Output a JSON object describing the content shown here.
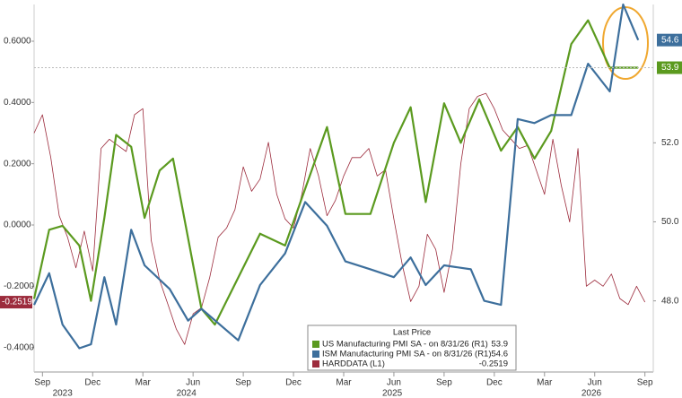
{
  "chart_data": {
    "type": "line",
    "xlim": [
      -0.5,
      36.5
    ],
    "xticks": [
      {
        "value": 0,
        "label": "Sep"
      },
      {
        "value": 3,
        "label": "Dec"
      },
      {
        "value": 6,
        "label": "Mar"
      },
      {
        "value": 9,
        "label": "Jun"
      },
      {
        "value": 12,
        "label": "Sep"
      },
      {
        "value": 15,
        "label": "Dec"
      },
      {
        "value": 18,
        "label": "Mar"
      },
      {
        "value": 21,
        "label": "Jun"
      },
      {
        "value": 24,
        "label": "Sep"
      },
      {
        "value": 27,
        "label": "Dec"
      },
      {
        "value": 30,
        "label": "Mar"
      },
      {
        "value": 33,
        "label": "Jun"
      },
      {
        "value": 36,
        "label": "Sep"
      }
    ],
    "year_labels": [
      {
        "value": 1.2,
        "label": "2023"
      },
      {
        "value": 8.6,
        "label": "2024"
      },
      {
        "value": 20.9,
        "label": "2025"
      },
      {
        "value": 32.8,
        "label": "2026"
      }
    ],
    "ylim": [
      -0.48,
      0.72
    ],
    "yticks": [
      {
        "value": -0.4,
        "label": "-0.4000"
      },
      {
        "value": -0.2,
        "label": "-0.2000"
      },
      {
        "value": 0,
        "label": "0.0000"
      },
      {
        "value": 0.2,
        "label": "0.2000"
      },
      {
        "value": 0.4,
        "label": "0.4000"
      },
      {
        "value": 0.6,
        "label": "0.6000"
      }
    ],
    "y2lim": [
      46.2,
      55.5
    ],
    "y2ticks": [
      {
        "value": 48,
        "label": "48.0"
      },
      {
        "value": 50,
        "label": "50.0"
      },
      {
        "value": 52,
        "label": "52.0"
      }
    ],
    "legend_title": "Last Price",
    "series": [
      {
        "name": "US Manufacturing PMI SA - on 8/31/26 (R1)",
        "color": "#5b9a1f",
        "axis": "y2",
        "x": [
          -0.5,
          0.4,
          1.2,
          2.2,
          2.9,
          3.7,
          4.4,
          5.3,
          6.1,
          7.0,
          7.8,
          9.5,
          10.3,
          13.0,
          14.5,
          17.0,
          18.1,
          19.6,
          21.0,
          22.0,
          22.9,
          24.0,
          25.0,
          26.1,
          27.4,
          28.4,
          29.4,
          30.4,
          31.6,
          32.6,
          33.9,
          35.6
        ],
        "values": [
          48.05,
          49.8,
          49.9,
          49.4,
          48.0,
          50.1,
          52.2,
          51.9,
          50.1,
          51.3,
          51.6,
          47.8,
          47.4,
          49.7,
          49.4,
          52.4,
          50.2,
          50.2,
          52.0,
          52.9,
          50.5,
          53.0,
          52.0,
          53.1,
          51.8,
          52.4,
          51.6,
          52.3,
          54.5,
          55.1,
          53.9,
          53.9
        ]
      },
      {
        "name": "ISM Manufacturing PMI SA - on 8/31/26 (R1)",
        "color": "#3d6f9c",
        "axis": "y2",
        "x": [
          -0.5,
          0.4,
          1.2,
          2.2,
          2.9,
          3.7,
          4.4,
          5.3,
          6.1,
          7.6,
          8.7,
          9.5,
          11.7,
          13.0,
          14.5,
          15.7,
          17.0,
          18.1,
          19.6,
          21.0,
          22.0,
          22.9,
          24.0,
          25.6,
          26.4,
          27.4,
          28.4,
          29.4,
          30.4,
          31.6,
          32.6,
          33.9,
          34.7,
          35.6
        ],
        "values": [
          47.9,
          48.7,
          47.4,
          46.8,
          46.9,
          48.6,
          47.4,
          49.8,
          48.9,
          48.3,
          47.5,
          47.8,
          47.0,
          48.4,
          49.2,
          50.5,
          49.9,
          49.0,
          48.8,
          48.6,
          49.1,
          48.4,
          48.9,
          48.8,
          48.0,
          47.9,
          52.6,
          52.5,
          52.7,
          52.7,
          54.0,
          53.3,
          55.5,
          54.6
        ]
      },
      {
        "name": "HARDDATA (L1)",
        "color": "#9c2b3c",
        "axis": "y",
        "x": [
          -0.5,
          0,
          0.5,
          1,
          1.5,
          2,
          2.5,
          3,
          3.5,
          4,
          4.5,
          5,
          5.5,
          6,
          6.5,
          7,
          7.5,
          8,
          8.5,
          9,
          9.5,
          10,
          10.5,
          11,
          11.5,
          12,
          12.5,
          13,
          13.5,
          14,
          14.5,
          15,
          15.5,
          16,
          16.5,
          17,
          17.5,
          18,
          18.5,
          19,
          19.5,
          20,
          20.5,
          21,
          21.5,
          22,
          22.5,
          23,
          23.5,
          24,
          24.5,
          25,
          25.5,
          26,
          26.5,
          27,
          27.5,
          28,
          28.5,
          29,
          29.5,
          30,
          30.5,
          31,
          31.5,
          32,
          32.5,
          33,
          33.5,
          34,
          34.5,
          35,
          35.5,
          36
        ],
        "values": [
          0.3,
          0.36,
          0.22,
          0.03,
          -0.04,
          -0.14,
          -0.02,
          -0.15,
          0.25,
          0.28,
          0.26,
          0.24,
          0.36,
          0.38,
          -0.05,
          -0.18,
          -0.26,
          -0.34,
          -0.39,
          -0.29,
          -0.27,
          -0.17,
          -0.04,
          -0.01,
          0.05,
          0.19,
          0.11,
          0.15,
          0.27,
          0.1,
          0.02,
          -0.01,
          0.1,
          0.25,
          0.16,
          0.03,
          0.08,
          0.16,
          0.22,
          0.22,
          0.25,
          0.16,
          0.18,
          0.02,
          -0.13,
          -0.25,
          -0.2,
          -0.03,
          -0.08,
          -0.22,
          -0.08,
          0.2,
          0.38,
          0.42,
          0.43,
          0.38,
          0.31,
          0.28,
          0.25,
          0.26,
          0.18,
          0.1,
          0.28,
          0.13,
          0.01,
          0.25,
          -0.2,
          -0.18,
          -0.2,
          -0.16,
          -0.24,
          -0.26,
          -0.2,
          -0.2519
        ]
      }
    ]
  }
}
